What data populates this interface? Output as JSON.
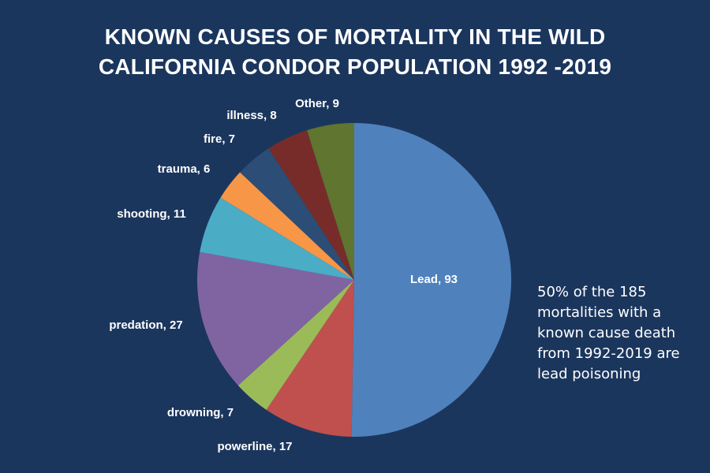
{
  "chart_data": {
    "type": "pie",
    "title_lines": [
      "KNOWN CAUSES OF MORTALITY IN THE WILD",
      "CALIFORNIA CONDOR POPULATION 1992 -2019"
    ],
    "slices": [
      {
        "category": "Lead",
        "value": 93,
        "label": "Lead, 93",
        "color": "#4f81bd"
      },
      {
        "category": "powerline",
        "value": 17,
        "label": "powerline, 17",
        "color": "#c0504d"
      },
      {
        "category": "drowning",
        "value": 7,
        "label": "drowning, 7",
        "color": "#9bbb59"
      },
      {
        "category": "predation",
        "value": 27,
        "label": "predation, 27",
        "color": "#8064a2"
      },
      {
        "category": "shooting",
        "value": 11,
        "label": "shooting, 11",
        "color": "#4bacc6"
      },
      {
        "category": "trauma",
        "value": 6,
        "label": "trauma, 6",
        "color": "#f79646"
      },
      {
        "category": "fire",
        "value": 7,
        "label": "fire, 7",
        "color": "#2c4d75"
      },
      {
        "category": "illness",
        "value": 8,
        "label": "illness, 8",
        "color": "#772c2a"
      },
      {
        "category": "Other",
        "value": 9,
        "label": "Other, 9",
        "color": "#5f7530"
      }
    ],
    "annotation_lines": [
      "50% of the 185",
      "mortalities with a",
      "known cause death",
      "from 1992-2019 are",
      "lead poisoning"
    ]
  },
  "colors": {
    "background": "#1b365d",
    "text": "#ffffff"
  }
}
